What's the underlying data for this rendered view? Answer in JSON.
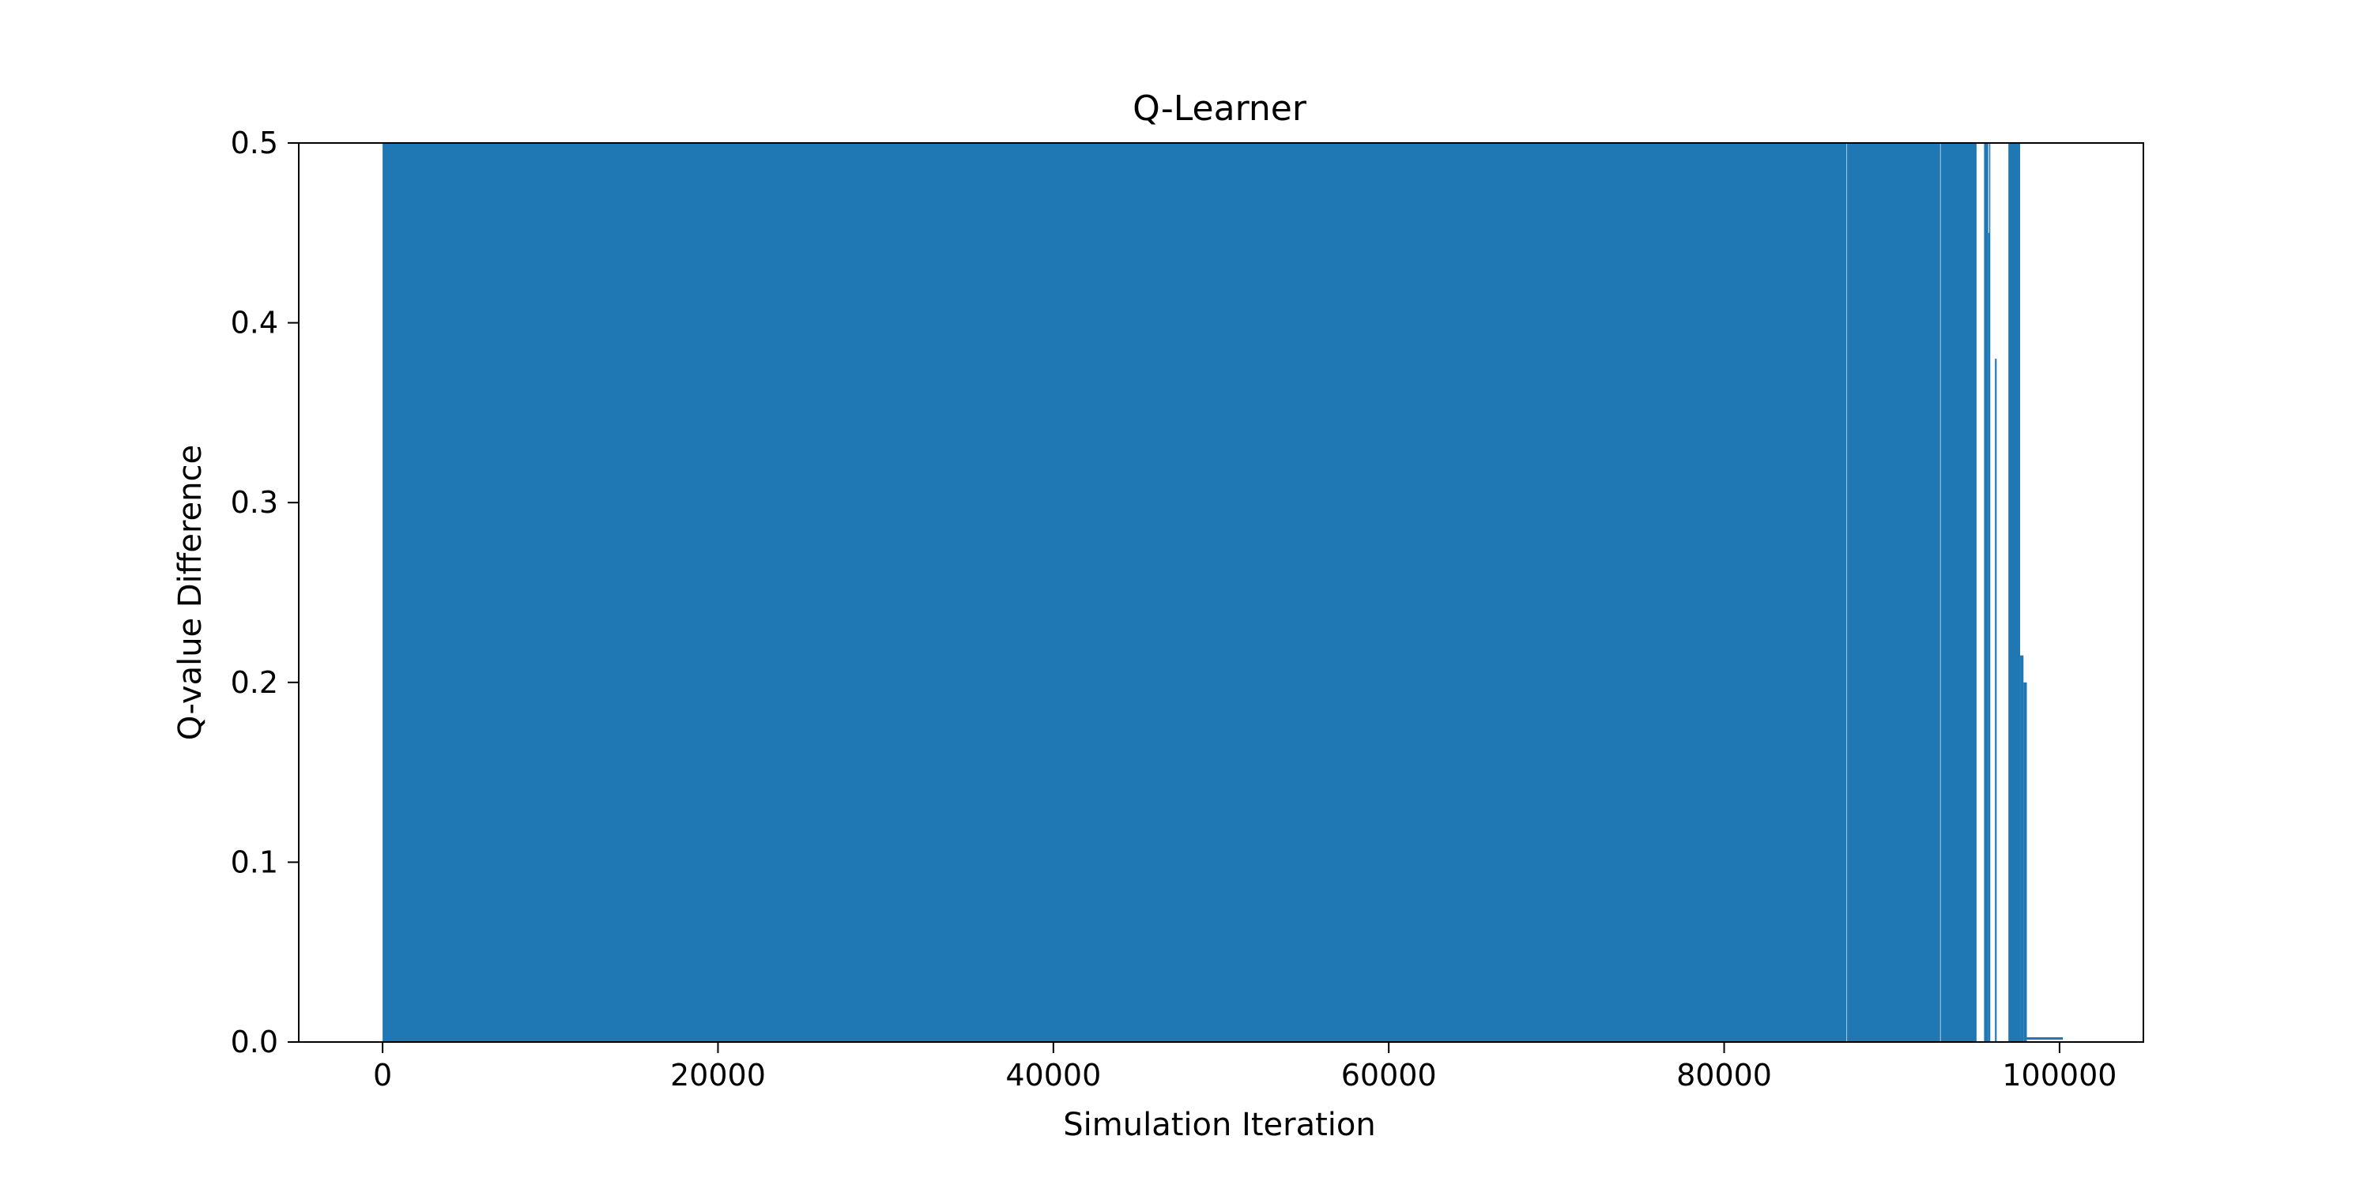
{
  "chart_data": {
    "type": "line",
    "title": "Q-Learner",
    "xlabel": "Simulation Iteration",
    "ylabel": "Q-value Difference",
    "xlim": [
      -5000,
      105000
    ],
    "ylim": [
      0,
      0.5
    ],
    "grid": false,
    "legend": "none",
    "colors": {
      "series": "#1f77b4",
      "axes": "#000000",
      "background": "#ffffff"
    },
    "x_ticks": [
      {
        "value": 0,
        "label": "0"
      },
      {
        "value": 20000,
        "label": "20000"
      },
      {
        "value": 40000,
        "label": "40000"
      },
      {
        "value": 60000,
        "label": "60000"
      },
      {
        "value": 80000,
        "label": "80000"
      },
      {
        "value": 100000,
        "label": "100000"
      }
    ],
    "y_ticks": [
      {
        "value": 0.0,
        "label": "0.0"
      },
      {
        "value": 0.1,
        "label": "0.1"
      },
      {
        "value": 0.2,
        "label": "0.2"
      },
      {
        "value": 0.3,
        "label": "0.3"
      },
      {
        "value": 0.4,
        "label": "0.4"
      },
      {
        "value": 0.5,
        "label": "0.5"
      }
    ],
    "series": [
      {
        "segments": [
          {
            "x": [
              0,
              87300
            ],
            "y": [
              0.5,
              0.5
            ]
          },
          {
            "x": [
              87330,
              92880
            ],
            "y": [
              0.5,
              0.5
            ]
          },
          {
            "x": [
              92910,
              95050
            ],
            "y": [
              0.5,
              0.5
            ]
          },
          {
            "x": [
              95500,
              95750
            ],
            "y": [
              0.5,
              0.5
            ]
          },
          {
            "x": [
              95750,
              95800
            ],
            "y": [
              0.45,
              0.45
            ]
          },
          {
            "x": [
              95800,
              95820
            ],
            "y": [
              0.5,
              0.5
            ]
          },
          {
            "x": [
              96150,
              96250
            ],
            "y": [
              0.38,
              0.38
            ]
          },
          {
            "x": [
              96950,
              97650
            ],
            "y": [
              0.5,
              0.5
            ]
          },
          {
            "x": [
              97650,
              97850
            ],
            "y": [
              0.215,
              0.215
            ]
          },
          {
            "x": [
              97850,
              98050
            ],
            "y": [
              0.2,
              0.2
            ]
          }
        ],
        "tail": {
          "x": [
            98050,
            100200
          ],
          "y": [
            0.002,
            0.002
          ]
        }
      }
    ]
  }
}
